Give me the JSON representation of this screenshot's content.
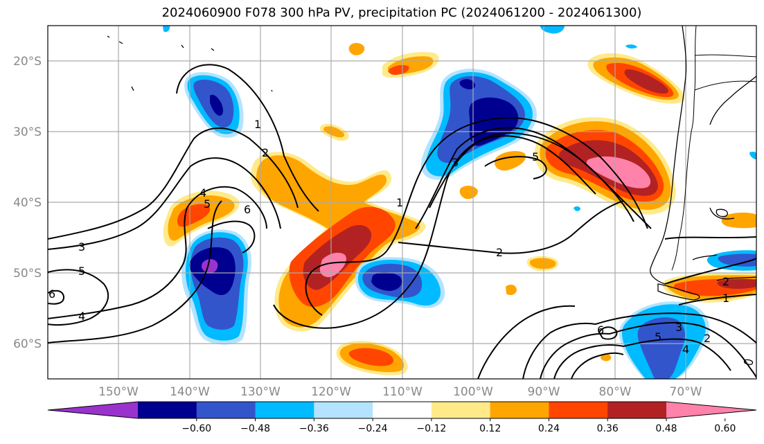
{
  "title": "2024060900 F078 300 hPa PV, precipitation PC (2024061200 - 2024061300)",
  "lat_labels": [
    "20°S",
    "30°S",
    "40°S",
    "50°S",
    "60°S"
  ],
  "lon_labels": [
    "150°W",
    "140°W",
    "130°W",
    "120°W",
    "110°W",
    "100°W",
    "90°W",
    "80°W",
    "70°W"
  ],
  "colorbar": {
    "ticks": [
      "−0.60",
      "−0.48",
      "−0.36",
      "−0.24",
      "−0.12",
      "0.12",
      "0.24",
      "0.36",
      "0.48",
      "0.60"
    ],
    "colors": [
      "#9933cc",
      "#000090",
      "#3355cc",
      "#00bbff",
      "#b3e3ff",
      "#ffffff",
      "#ffea8a",
      "#ffa500",
      "#ff4500",
      "#b22222",
      "#ff82aa"
    ]
  },
  "contour_labels": [
    "1",
    "2",
    "3",
    "4",
    "5",
    "6"
  ],
  "map_extent": {
    "lon": [
      -160,
      -60
    ],
    "lat": [
      -65,
      -15
    ]
  },
  "pv_contours": [
    {
      "value": "2",
      "label": "2"
    },
    {
      "value": "3",
      "label": "3"
    },
    {
      "value": "4",
      "label": "4"
    },
    {
      "value": "5",
      "label": "5"
    },
    {
      "value": "6",
      "label": "6"
    }
  ]
}
